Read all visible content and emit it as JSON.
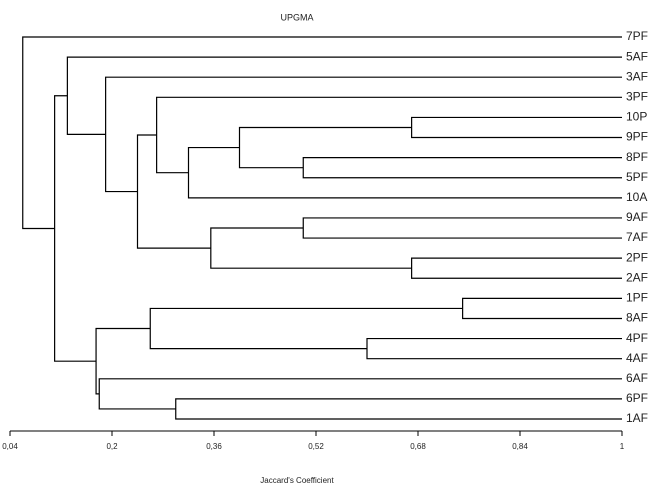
{
  "chart_data": {
    "type": "dendrogram",
    "title": "UPGMA",
    "x_label": "Jaccard's Coefficient",
    "leaves": [
      "7PF",
      "5AF",
      "3AF",
      "3PF",
      "10P",
      "9PF",
      "8PF",
      "5PF",
      "10A",
      "9AF",
      "7AF",
      "2PF",
      "2AF",
      "1PF",
      "8AF",
      "4PF",
      "4AF",
      "6AF",
      "6PF",
      "1AF"
    ],
    "merges": [
      {
        "children": [
          4,
          5
        ],
        "value": 0.67
      },
      {
        "children": [
          6,
          7
        ],
        "value": 0.5
      },
      {
        "children": [
          20,
          21
        ],
        "value": 0.4
      },
      {
        "children": [
          22,
          8
        ],
        "value": 0.32
      },
      {
        "children": [
          3,
          23
        ],
        "value": 0.27
      },
      {
        "children": [
          9,
          10
        ],
        "value": 0.5
      },
      {
        "children": [
          11,
          12
        ],
        "value": 0.67
      },
      {
        "children": [
          25,
          26
        ],
        "value": 0.355
      },
      {
        "children": [
          24,
          27
        ],
        "value": 0.24
      },
      {
        "children": [
          2,
          28
        ],
        "value": 0.19
      },
      {
        "children": [
          1,
          29
        ],
        "value": 0.13
      },
      {
        "children": [
          13,
          14
        ],
        "value": 0.75
      },
      {
        "children": [
          15,
          16
        ],
        "value": 0.6
      },
      {
        "children": [
          31,
          32
        ],
        "value": 0.26
      },
      {
        "children": [
          18,
          19
        ],
        "value": 0.3
      },
      {
        "children": [
          17,
          34
        ],
        "value": 0.18
      },
      {
        "children": [
          33,
          35
        ],
        "value": 0.175
      },
      {
        "children": [
          30,
          36
        ],
        "value": 0.11
      },
      {
        "children": [
          0,
          37
        ],
        "value": 0.06
      }
    ],
    "xlim": [
      0.04,
      1
    ],
    "xticks": [
      {
        "value": 0.04,
        "label": "0,04"
      },
      {
        "value": 0.2,
        "label": "0,2"
      },
      {
        "value": 0.36,
        "label": "0,36"
      },
      {
        "value": 0.52,
        "label": "0,52"
      },
      {
        "value": 0.68,
        "label": "0,68"
      },
      {
        "value": 0.84,
        "label": "0,84"
      },
      1
    ],
    "color": "#000000"
  }
}
